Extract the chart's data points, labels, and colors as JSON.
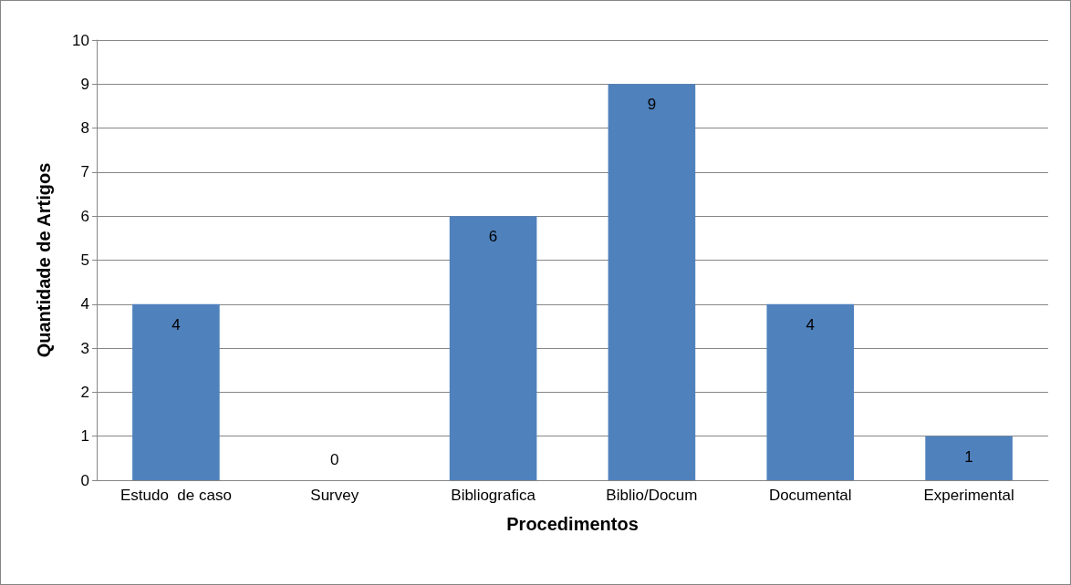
{
  "chart_data": {
    "type": "bar",
    "xlabel": "Procedimentos",
    "ylabel": "Quantidade de Artigos",
    "categories": [
      "Estudo  de caso",
      "Survey",
      "Bibliografica",
      "Biblio/Docum",
      "Documental",
      "Experimental"
    ],
    "values": [
      4,
      0,
      6,
      9,
      4,
      1
    ],
    "color": "#4f81bd",
    "ylim": [
      0,
      10
    ],
    "yticks": [
      0,
      1,
      2,
      3,
      4,
      5,
      6,
      7,
      8,
      9,
      10
    ],
    "grid": "y",
    "data_labels": true
  }
}
